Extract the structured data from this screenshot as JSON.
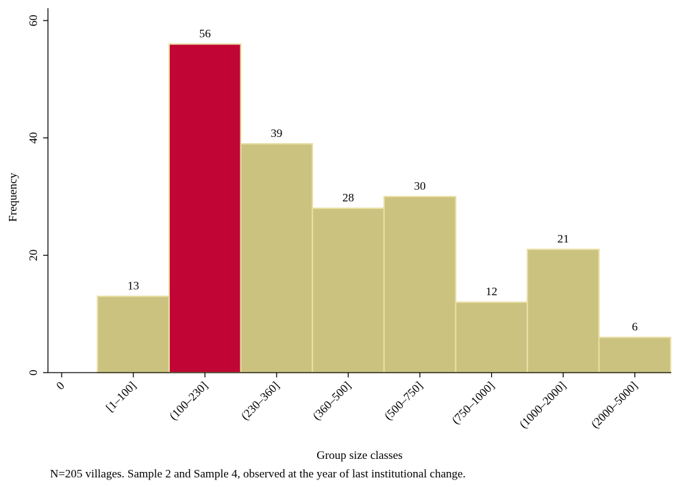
{
  "chart_data": {
    "type": "bar",
    "categories": [
      "[1–100]",
      "(100–230]",
      "(230–360]",
      "(360–500]",
      "(500–750]",
      "(750–1000]",
      "(1000–2000]",
      "(2000–5000]"
    ],
    "values": [
      13,
      56,
      39,
      28,
      30,
      12,
      21,
      6
    ],
    "data_labels": [
      "13",
      "56",
      "39",
      "28",
      "30",
      "12",
      "21",
      "6"
    ],
    "x_origin_label": "0",
    "highlight_index": 1,
    "xlabel": "Group size classes",
    "ylabel": "Frequency",
    "ylim": [
      0,
      60
    ],
    "yticks": [
      0,
      20,
      40,
      60
    ],
    "ytick_labels": [
      "0",
      "20",
      "40",
      "60"
    ],
    "grid": false,
    "colors": {
      "bar": "#cbc27f",
      "highlight": "#c10534",
      "bar_edge": "#e9dfa6"
    }
  },
  "note": "N=205 villages. Sample 2 and Sample 4, observed at the year of last institutional change."
}
